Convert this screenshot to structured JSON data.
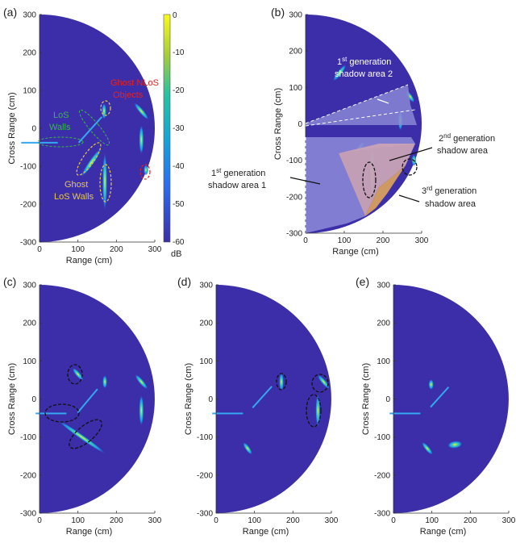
{
  "colors": {
    "background": "#3b2ea8",
    "shadow_blue": "#8a86d6",
    "shadow_orange": "#d7a05e",
    "shadow_pink": "#c9a3b6",
    "ghost_annot": "#e8c84a",
    "los_annot": "#39b54a",
    "nlos_annot": "#e8211f",
    "white_annot": "#ffffff"
  },
  "chart_data": [
    {
      "panel": "(a)",
      "type": "heatmap",
      "xlabel": "Range (cm)",
      "ylabel": "Cross Range (cm)",
      "xlim": [
        0,
        300
      ],
      "ylim": [
        -300,
        300
      ],
      "x_ticks": [
        "0",
        "100",
        "200",
        "300"
      ],
      "y_ticks": [
        "300",
        "200",
        "100",
        "0",
        "-100",
        "-200",
        "-300"
      ],
      "colorbar": {
        "label": "dB",
        "ticks": [
          "0",
          "-10",
          "-20",
          "-30",
          "-40",
          "-50",
          "-60"
        ],
        "range": [
          -60,
          0
        ]
      },
      "annotations": [
        "LoS Walls",
        "Ghost LoS Walls",
        "Ghost NLoS Objects"
      ],
      "features": [
        {
          "x1": 0,
          "y1": -38,
          "x2": 90,
          "y2": -38,
          "kind": "line"
        },
        {
          "x1": 100,
          "y1": 35,
          "x2": 165,
          "y2": -42,
          "kind": "line"
        },
        {
          "x1": 170,
          "y1": -60,
          "x2": 100,
          "y2": -120,
          "kind": "blob"
        },
        {
          "x1": 168,
          "y1": 50,
          "x2": 168,
          "y2": 40,
          "kind": "blob"
        },
        {
          "x1": 170,
          "y1": -100,
          "x2": 170,
          "y2": -180,
          "kind": "blob"
        },
        {
          "x1": 260,
          "y1": 60,
          "x2": 280,
          "y2": 35,
          "kind": "blob"
        },
        {
          "x1": 265,
          "y1": -10,
          "x2": 265,
          "y2": -50,
          "kind": "blob"
        },
        {
          "x1": 270,
          "y1": -105,
          "x2": 285,
          "y2": -120,
          "kind": "blob"
        }
      ]
    },
    {
      "panel": "(b)",
      "type": "heatmap",
      "xlabel": "Range (cm)",
      "ylabel": "Cross Range (cm)",
      "xlim": [
        0,
        300
      ],
      "ylim": [
        -300,
        300
      ],
      "x_ticks": [
        "0",
        "100",
        "200",
        "300"
      ],
      "y_ticks": [
        "300",
        "200",
        "100",
        "0",
        "-100",
        "-200",
        "-300"
      ],
      "annotations": [
        {
          "gen": "1",
          "sup": "st",
          "rest": " generation",
          "line2": "shadow area 2"
        },
        {
          "gen": "2",
          "sup": "nd",
          "rest": " generation",
          "line2": "shadow area"
        },
        {
          "gen": "1",
          "sup": "st",
          "rest": " generation",
          "line2": "shadow area 1"
        },
        {
          "gen": "3",
          "sup": "rd",
          "rest": " generation",
          "line2": "shadow area"
        }
      ]
    },
    {
      "panel": "(c)",
      "type": "heatmap",
      "xlabel": "Range (cm)",
      "ylabel": "Cross Range (cm)",
      "xlim": [
        0,
        300
      ],
      "ylim": [
        -300,
        300
      ],
      "x_ticks": [
        "0",
        "100",
        "200",
        "300"
      ],
      "y_ticks": [
        "300",
        "200",
        "100",
        "0",
        "-100",
        "-200",
        "-300"
      ]
    },
    {
      "panel": "(d)",
      "type": "heatmap",
      "xlabel": "Range (cm)",
      "ylabel": "Cross Range (cm)",
      "xlim": [
        0,
        300
      ],
      "ylim": [
        -300,
        300
      ],
      "x_ticks": [
        "0",
        "100",
        "200",
        "300"
      ],
      "y_ticks": [
        "300",
        "200",
        "100",
        "0",
        "-100",
        "-200",
        "-300"
      ]
    },
    {
      "panel": "(e)",
      "type": "heatmap",
      "xlabel": "Range (cm)",
      "ylabel": "Cross Range (cm)",
      "xlim": [
        0,
        300
      ],
      "ylim": [
        -300,
        300
      ],
      "x_ticks": [
        "0",
        "100",
        "200",
        "300"
      ],
      "y_ticks": [
        "300",
        "200",
        "100",
        "0",
        "-100",
        "-200",
        "-300"
      ]
    }
  ]
}
